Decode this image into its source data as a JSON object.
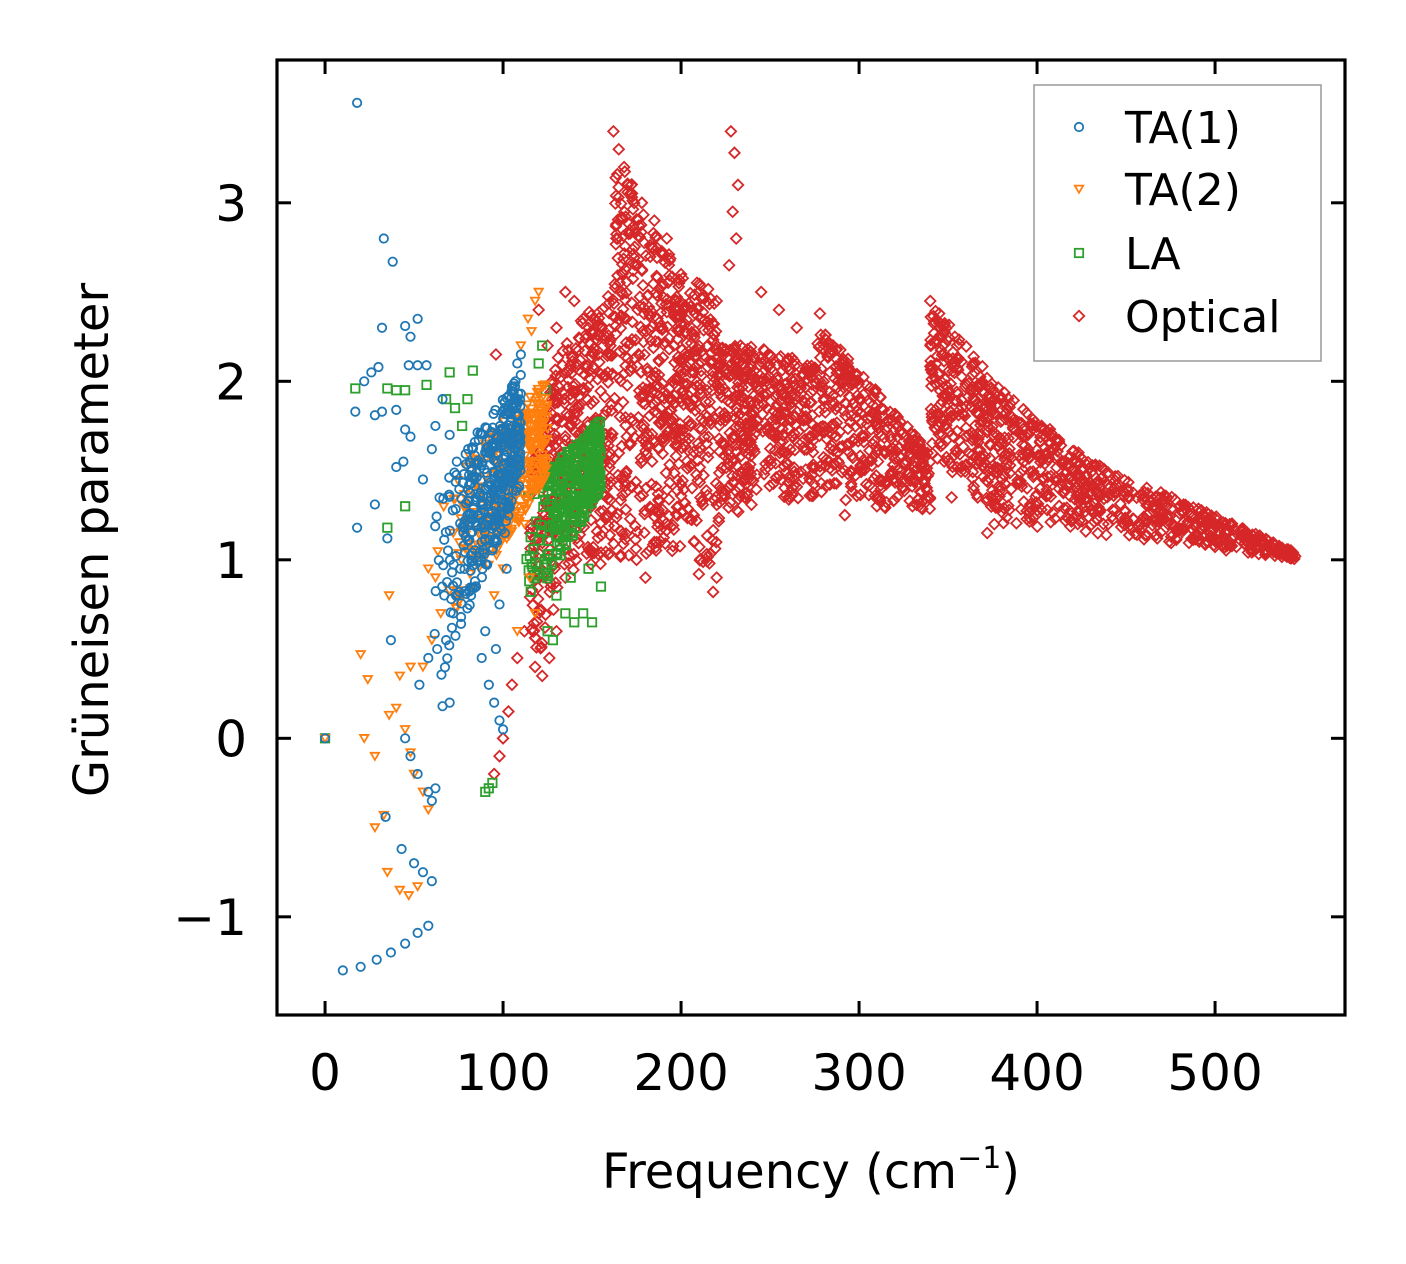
{
  "chart_data": {
    "type": "scatter",
    "title": "",
    "xlabel": "Frequency (cm",
    "xlabel_sup": "−1",
    "xlabel_close": ")",
    "ylabel": "Grüneisen parameter",
    "xlim": [
      -27,
      573
    ],
    "ylim": [
      -1.55,
      3.8
    ],
    "xticks": [
      0,
      100,
      200,
      300,
      400,
      500
    ],
    "xtick_labels": [
      "0",
      "100",
      "200",
      "300",
      "400",
      "500"
    ],
    "yticks": [
      -1,
      0,
      1,
      2,
      3
    ],
    "ytick_labels": [
      "−1",
      "0",
      "1",
      "2",
      "3"
    ],
    "grid": false,
    "legend_position": "top-right",
    "series": [
      {
        "name": "TA(1)",
        "marker": "circle",
        "color": "#1f77b4",
        "points": [
          [
            18,
            3.56
          ],
          [
            33,
            2.8
          ],
          [
            38,
            2.67
          ],
          [
            32,
            2.3
          ],
          [
            45,
            2.31
          ],
          [
            52,
            2.35
          ],
          [
            48,
            2.25
          ],
          [
            30,
            2.08
          ],
          [
            26,
            2.05
          ],
          [
            22,
            2.0
          ],
          [
            47,
            2.09
          ],
          [
            52,
            2.09
          ],
          [
            57,
            2.09
          ],
          [
            17,
            1.83
          ],
          [
            28,
            1.81
          ],
          [
            32,
            1.83
          ],
          [
            40,
            1.84
          ],
          [
            45,
            1.73
          ],
          [
            48,
            1.69
          ],
          [
            40,
            1.52
          ],
          [
            44,
            1.55
          ],
          [
            18,
            1.18
          ],
          [
            35,
            1.12
          ],
          [
            28,
            1.31
          ],
          [
            55,
            1.45
          ],
          [
            60,
            1.62
          ],
          [
            62,
            1.75
          ],
          [
            66,
            1.9
          ],
          [
            70,
            1.7
          ],
          [
            74,
            1.55
          ],
          [
            78,
            1.48
          ],
          [
            85,
            1.35
          ],
          [
            80,
            1.25
          ],
          [
            88,
            1.1
          ],
          [
            76,
            0.95
          ],
          [
            82,
            0.8
          ],
          [
            72,
            0.7
          ],
          [
            68,
            0.55
          ],
          [
            63,
            0.5
          ],
          [
            58,
            0.45
          ],
          [
            53,
            0.3
          ],
          [
            70,
            0.2
          ],
          [
            66,
            0.18
          ],
          [
            37,
            0.55
          ],
          [
            90,
            0.6
          ],
          [
            88,
            0.45
          ],
          [
            92,
            0.3
          ],
          [
            95,
            0.2
          ],
          [
            98,
            0.1
          ],
          [
            100,
            0.05
          ],
          [
            96,
            0.5
          ],
          [
            98,
            0.75
          ],
          [
            102,
            0.95
          ],
          [
            101,
            1.15
          ],
          [
            103,
            1.35
          ],
          [
            104,
            1.55
          ],
          [
            105,
            1.7
          ],
          [
            106,
            1.85
          ],
          [
            107,
            2.0
          ],
          [
            108,
            2.1
          ],
          [
            110,
            2.15
          ],
          [
            45,
            0.0
          ],
          [
            48,
            -0.1
          ],
          [
            52,
            -0.2
          ],
          [
            58,
            -0.3
          ],
          [
            60,
            -0.35
          ],
          [
            62,
            -0.28
          ],
          [
            34,
            -0.44
          ],
          [
            43,
            -0.62
          ],
          [
            50,
            -0.7
          ],
          [
            55,
            -0.75
          ],
          [
            60,
            -0.8
          ],
          [
            10,
            -1.3
          ],
          [
            20,
            -1.28
          ],
          [
            29,
            -1.24
          ],
          [
            37,
            -1.2
          ],
          [
            45,
            -1.15
          ],
          [
            52,
            -1.09
          ],
          [
            58,
            -1.05
          ],
          [
            0,
            0.0
          ]
        ],
        "cluster": {
          "x_min": 60,
          "x_max": 110,
          "y_min": 0.05,
          "y_max": 2.15,
          "count": 420,
          "skew": 0.55
        }
      },
      {
        "name": "TA(2)",
        "marker": "triangle-down",
        "color": "#ff7f0e",
        "points": [
          [
            36,
            0.8
          ],
          [
            20,
            0.47
          ],
          [
            24,
            0.33
          ],
          [
            36,
            0.13
          ],
          [
            40,
            0.17
          ],
          [
            42,
            0.35
          ],
          [
            48,
            0.4
          ],
          [
            22,
            0.0
          ],
          [
            28,
            -0.1
          ],
          [
            45,
            0.05
          ],
          [
            48,
            -0.08
          ],
          [
            50,
            -0.2
          ],
          [
            55,
            -0.3
          ],
          [
            58,
            -0.4
          ],
          [
            28,
            -0.5
          ],
          [
            33,
            -0.43
          ],
          [
            35,
            -0.75
          ],
          [
            42,
            -0.85
          ],
          [
            47,
            -0.88
          ],
          [
            52,
            -0.83
          ],
          [
            58,
            0.95
          ],
          [
            62,
            0.9
          ],
          [
            60,
            0.55
          ],
          [
            55,
            0.4
          ],
          [
            65,
            0.7
          ],
          [
            72,
            1.15
          ],
          [
            80,
            1.3
          ],
          [
            85,
            1.55
          ],
          [
            90,
            1.65
          ],
          [
            100,
            0.95
          ],
          [
            95,
            0.8
          ],
          [
            110,
            2.2
          ],
          [
            114,
            2.35
          ],
          [
            118,
            2.45
          ],
          [
            120,
            2.5
          ],
          [
            116,
            2.28
          ],
          [
            112,
            1.2
          ],
          [
            115,
            0.9
          ],
          [
            118,
            0.7
          ],
          [
            108,
            0.6
          ],
          [
            0,
            0.0
          ]
        ],
        "cluster": {
          "x_min": 62,
          "x_max": 125,
          "y_min": 0.3,
          "y_max": 2.1,
          "count": 360,
          "skew": 0.45
        }
      },
      {
        "name": "LA",
        "marker": "square",
        "color": "#2ca02c",
        "points": [
          [
            17,
            1.96
          ],
          [
            35,
            1.96
          ],
          [
            40,
            1.95
          ],
          [
            45,
            1.95
          ],
          [
            57,
            1.98
          ],
          [
            70,
            2.05
          ],
          [
            68,
            1.9
          ],
          [
            73,
            1.85
          ],
          [
            77,
            1.75
          ],
          [
            83,
            2.06
          ],
          [
            80,
            1.9
          ],
          [
            35,
            1.18
          ],
          [
            45,
            1.3
          ],
          [
            120,
            2.1
          ],
          [
            122,
            2.2
          ],
          [
            124,
            1.95
          ],
          [
            130,
            0.8
          ],
          [
            135,
            0.7
          ],
          [
            140,
            0.65
          ],
          [
            145,
            0.7
          ],
          [
            150,
            0.65
          ],
          [
            155,
            0.85
          ],
          [
            125,
            0.6
          ],
          [
            128,
            0.55
          ],
          [
            138,
            0.9
          ],
          [
            148,
            0.95
          ],
          [
            90,
            -0.3
          ],
          [
            92,
            -0.28
          ],
          [
            94,
            -0.25
          ],
          [
            0,
            0.0
          ]
        ],
        "cluster": {
          "x_min": 110,
          "x_max": 155,
          "y_min": 0.55,
          "y_max": 1.85,
          "count": 320,
          "skew": 0.5
        }
      },
      {
        "name": "Optical",
        "marker": "diamond",
        "color": "#d62728",
        "points": [
          [
            162,
            3.4
          ],
          [
            165,
            3.3
          ],
          [
            168,
            3.2
          ],
          [
            172,
            3.1
          ],
          [
            178,
            3.0
          ],
          [
            185,
            2.9
          ],
          [
            192,
            2.8
          ],
          [
            228,
            3.4
          ],
          [
            230,
            3.28
          ],
          [
            232,
            3.1
          ],
          [
            229,
            2.95
          ],
          [
            231,
            2.8
          ],
          [
            227,
            2.65
          ],
          [
            135,
            2.5
          ],
          [
            140,
            2.45
          ],
          [
            145,
            2.35
          ],
          [
            130,
            2.3
          ],
          [
            125,
            2.2
          ],
          [
            120,
            2.4
          ],
          [
            96,
            2.15
          ],
          [
            200,
            2.6
          ],
          [
            210,
            2.5
          ],
          [
            220,
            2.45
          ],
          [
            245,
            2.5
          ],
          [
            255,
            2.4
          ],
          [
            265,
            2.3
          ],
          [
            278,
            2.38
          ],
          [
            285,
            2.2
          ],
          [
            290,
            2.0
          ],
          [
            300,
            1.9
          ],
          [
            310,
            1.75
          ],
          [
            95,
            -0.2
          ],
          [
            98,
            -0.1
          ],
          [
            100,
            0.0
          ],
          [
            103,
            0.15
          ],
          [
            105,
            0.3
          ],
          [
            108,
            0.45
          ],
          [
            112,
            0.6
          ],
          [
            118,
            0.4
          ],
          [
            122,
            0.35
          ],
          [
            126,
            0.45
          ],
          [
            130,
            0.6
          ],
          [
            135,
            0.9
          ],
          [
            175,
            1.0
          ],
          [
            180,
            0.9
          ],
          [
            185,
            1.1
          ],
          [
            195,
            1.05
          ],
          [
            210,
            0.92
          ],
          [
            218,
            0.82
          ],
          [
            220,
            0.9
          ],
          [
            292,
            1.25
          ],
          [
            310,
            1.3
          ],
          [
            330,
            1.3
          ],
          [
            352,
            1.35
          ],
          [
            372,
            1.15
          ],
          [
            376,
            1.2
          ],
          [
            340,
            2.45
          ],
          [
            345,
            2.38
          ],
          [
            355,
            2.2
          ],
          [
            365,
            2.05
          ],
          [
            380,
            1.9
          ],
          [
            395,
            1.7
          ],
          [
            420,
            1.55
          ],
          [
            440,
            1.42
          ],
          [
            460,
            1.35
          ],
          [
            480,
            1.3
          ],
          [
            500,
            1.2
          ],
          [
            520,
            1.12
          ],
          [
            545,
            1.02
          ]
        ],
        "bands": [
          {
            "x0": 115,
            "x1": 135,
            "top0": 1.5,
            "top1": 2.3,
            "bot0": 0.3,
            "bot1": 0.9,
            "count": 180
          },
          {
            "x0": 135,
            "x1": 162,
            "top0": 2.3,
            "top1": 2.5,
            "bot0": 0.9,
            "bot1": 1.0,
            "count": 260
          },
          {
            "x0": 162,
            "x1": 200,
            "top0": 3.3,
            "top1": 2.6,
            "bot0": 1.0,
            "bot1": 1.05,
            "count": 420
          },
          {
            "x0": 200,
            "x1": 220,
            "top0": 2.6,
            "top1": 2.5,
            "bot0": 1.05,
            "bot1": 0.85,
            "count": 200
          },
          {
            "x0": 220,
            "x1": 240,
            "top0": 2.2,
            "top1": 2.2,
            "bot0": 1.2,
            "bot1": 1.3,
            "count": 200
          },
          {
            "x0": 240,
            "x1": 275,
            "top0": 2.2,
            "top1": 2.1,
            "bot0": 1.3,
            "bot1": 1.35,
            "count": 250
          },
          {
            "x0": 275,
            "x1": 340,
            "top0": 2.35,
            "top1": 1.6,
            "bot0": 1.35,
            "bot1": 1.25,
            "count": 380
          },
          {
            "x0": 340,
            "x1": 380,
            "top0": 2.45,
            "top1": 1.95,
            "bot0": 1.6,
            "bot1": 1.2,
            "count": 300
          },
          {
            "x0": 380,
            "x1": 430,
            "top0": 1.95,
            "top1": 1.55,
            "bot0": 1.2,
            "bot1": 1.15,
            "count": 260
          },
          {
            "x0": 430,
            "x1": 545,
            "top0": 1.55,
            "top1": 1.05,
            "bot0": 1.15,
            "bot1": 1.0,
            "count": 380
          }
        ]
      }
    ]
  }
}
